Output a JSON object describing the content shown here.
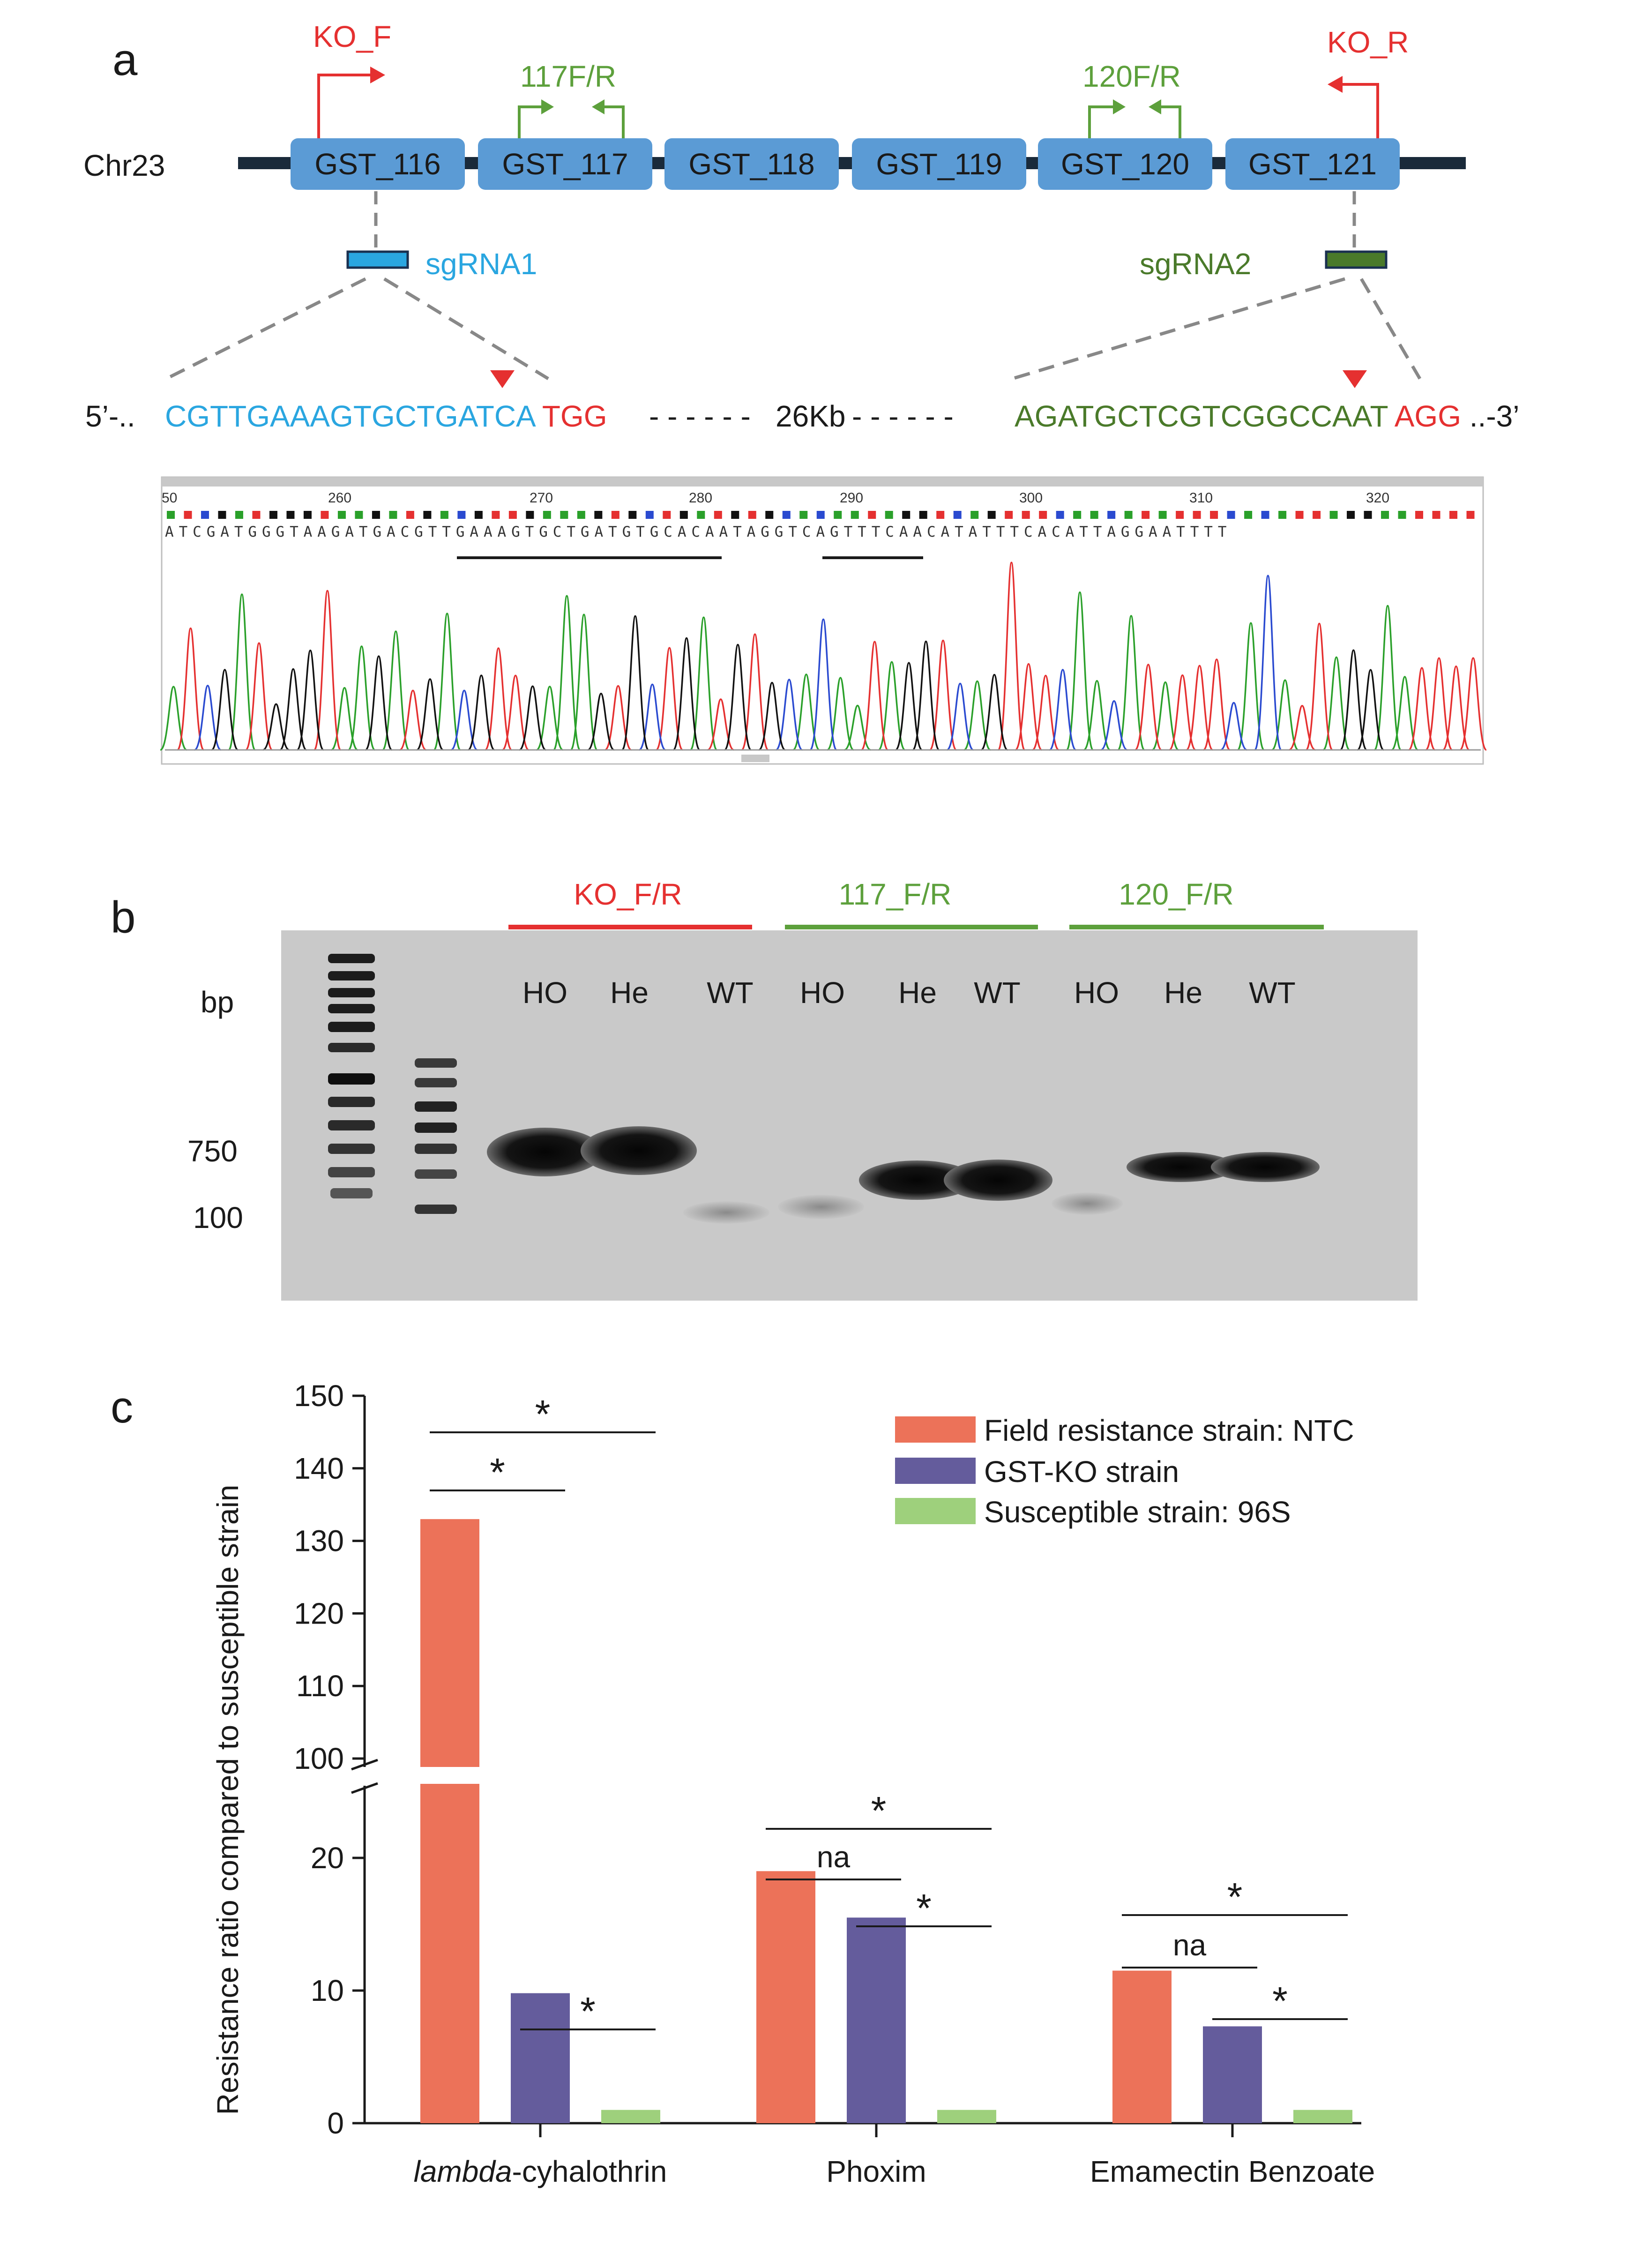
{
  "panel_a": {
    "label": "a",
    "chromosome": "Chr23",
    "genes": [
      "GST_116",
      "GST_117",
      "GST_118",
      "GST_119",
      "GST_120",
      "GST_121"
    ],
    "primers": {
      "ko_f": "KO_F",
      "ko_r": "KO_R",
      "p117": "117F/R",
      "p120": "120F/R"
    },
    "sgrna1": "sgRNA1",
    "sgrna2": "sgRNA2",
    "sequence": {
      "prefix": "5’-..",
      "seq1": "CGTTGAAAGTGCTGATCA",
      "pam1": "TGG",
      "dash_left": "- - - - - -",
      "distance": "26Kb",
      "dash_right": "- - - - - -",
      "seq2": "AGATGCTCGTCGGCCAAT",
      "pam2": "AGG",
      "suffix": "..-3’"
    },
    "chromatogram": {
      "ruler": [
        "50",
        "260",
        "270",
        "280",
        "290",
        "300",
        "310",
        "320"
      ],
      "bases": "ATCGATGGGTAAGATGACGTTGAAAGTGCTGATGTGCACAATAGGTCAGTTTCAACATATTTCACATTAGGAATTTT"
    },
    "colors": {
      "gene": "#5b9bd5",
      "backbone": "#1a2a3a",
      "red": "#e53030",
      "green": "#5da03c",
      "cyan": "#2aa6e0",
      "dark_green": "#4a7a2a"
    }
  },
  "panel_b": {
    "label": "b",
    "bp_label": "bp",
    "markers": [
      "750",
      "100"
    ],
    "groups": [
      {
        "name": "KO_F/R",
        "lanes": [
          "HO",
          "He",
          "WT"
        ]
      },
      {
        "name": "117_F/R",
        "lanes": [
          "HO",
          "He",
          "WT"
        ]
      },
      {
        "name": "120_F/R",
        "lanes": [
          "HO",
          "He",
          "WT"
        ]
      }
    ]
  },
  "panel_c": {
    "label": "c",
    "chart_data": {
      "type": "bar",
      "categories": [
        "lambda-cyhalothrin",
        "Phoxim",
        "Emamectin Benzoate"
      ],
      "category_italic_prefix": [
        "lambda",
        "",
        ""
      ],
      "category_suffix": [
        "-cyhalothrin",
        "Phoxim",
        "Emamectin Benzoate"
      ],
      "series": [
        {
          "name": "Field resistance strain: NTC",
          "values": [
            133,
            19,
            11.5
          ],
          "color": "#ec7259"
        },
        {
          "name": "GST-KO strain",
          "values": [
            9.8,
            15.5,
            7.3
          ],
          "color": "#645c9c"
        },
        {
          "name": "Susceptible strain: 96S",
          "values": [
            1,
            1,
            1
          ],
          "color": "#9ed07c"
        }
      ],
      "ylabel": "Resistance ratio compared to susceptible strain",
      "y_ticks_lower": [
        "0",
        "10",
        "20"
      ],
      "y_ticks_upper": [
        "100",
        "110",
        "120",
        "130",
        "140",
        "150"
      ],
      "y_break": [
        30,
        100
      ],
      "ylim": [
        0,
        150
      ],
      "legend_position": "top-right",
      "significance": [
        {
          "group": 0,
          "pair": [
            0,
            2
          ],
          "label": "*"
        },
        {
          "group": 0,
          "pair": [
            0,
            1
          ],
          "label": "*"
        },
        {
          "group": 0,
          "pair": [
            1,
            2
          ],
          "label": "*"
        },
        {
          "group": 1,
          "pair": [
            0,
            2
          ],
          "label": "*"
        },
        {
          "group": 1,
          "pair": [
            0,
            1
          ],
          "label": "na"
        },
        {
          "group": 1,
          "pair": [
            1,
            2
          ],
          "label": "*"
        },
        {
          "group": 2,
          "pair": [
            0,
            2
          ],
          "label": "*"
        },
        {
          "group": 2,
          "pair": [
            0,
            1
          ],
          "label": "na"
        },
        {
          "group": 2,
          "pair": [
            1,
            2
          ],
          "label": "*"
        }
      ]
    }
  }
}
